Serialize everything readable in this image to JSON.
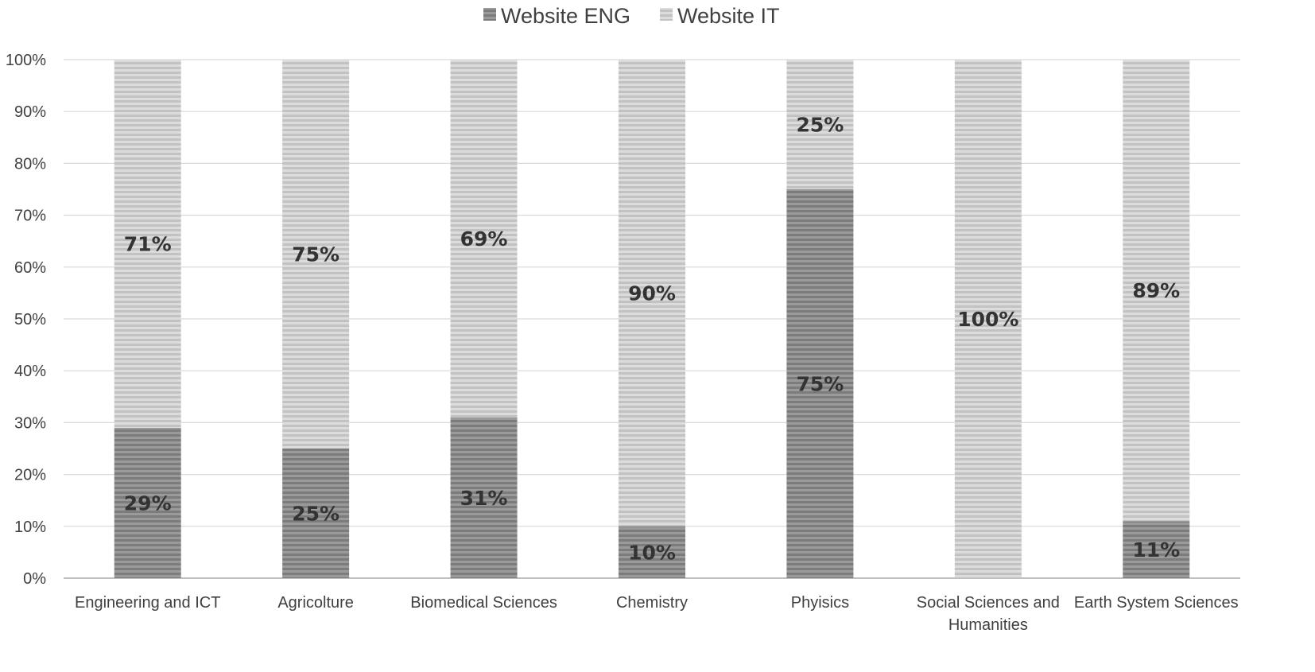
{
  "chart_data": {
    "type": "bar",
    "stacked": true,
    "percent": true,
    "categories": [
      "Engineering and ICT",
      "Agricolture",
      "Biomedical Sciences",
      "Chemistry",
      "Phyisics",
      "Social Sciences and Humanities",
      "Earth System Sciences"
    ],
    "series": [
      {
        "name": "Website ENG",
        "values": [
          29,
          25,
          31,
          10,
          75,
          0,
          11
        ],
        "labels": [
          "29%",
          "25%",
          "31%",
          "10%",
          "75%",
          null,
          "11%"
        ],
        "color": "#8c8c8c"
      },
      {
        "name": "Website IT",
        "values": [
          71,
          75,
          69,
          90,
          25,
          100,
          89
        ],
        "labels": [
          "71%",
          "75%",
          "69%",
          "90%",
          "25%",
          "100%",
          "89%"
        ],
        "color": "#cfcfcf"
      }
    ],
    "yticks": [
      "0%",
      "10%",
      "20%",
      "30%",
      "40%",
      "50%",
      "60%",
      "70%",
      "80%",
      "90%",
      "100%"
    ],
    "ylim": [
      0,
      100
    ],
    "grid": true,
    "legend_position": "top"
  }
}
